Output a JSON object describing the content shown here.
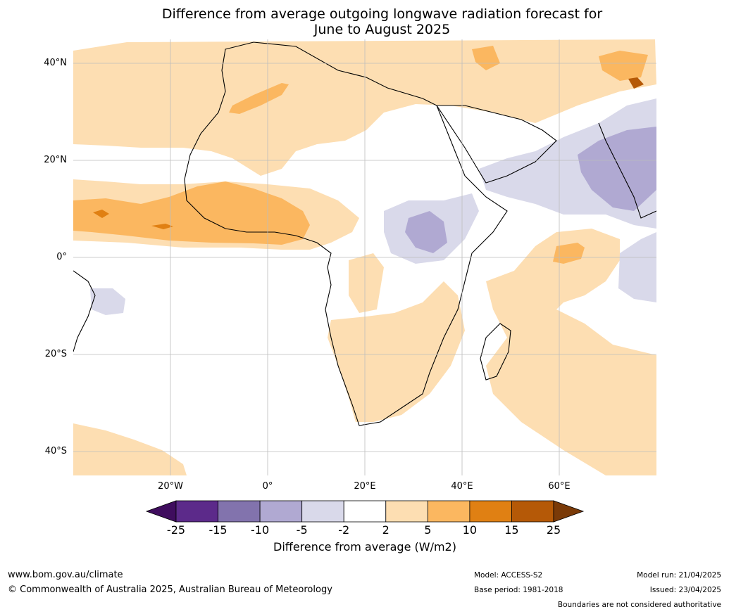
{
  "title_line1": "Difference from average outgoing longwave radiation forecast for",
  "title_line2": "June to August 2025",
  "map": {
    "lat_labels": [
      "40°N",
      "20°N",
      "0°",
      "20°S",
      "40°S"
    ],
    "lon_labels": [
      "20°W",
      "0°",
      "20°E",
      "40°E",
      "60°E"
    ]
  },
  "colorbar": {
    "ticks": [
      "-25",
      "-15",
      "-10",
      "-5",
      "-2",
      "2",
      "5",
      "10",
      "15",
      "25"
    ],
    "colors": [
      "#3f0d5e",
      "#5c2a8a",
      "#8273ad",
      "#b0a9d2",
      "#d9d9ea",
      "#ffffff",
      "#fddeb2",
      "#fbb760",
      "#e08013",
      "#b55907",
      "#7a3a08"
    ],
    "label": "Difference from average (W/m2)"
  },
  "footer": {
    "website": "www.bom.gov.au/climate",
    "copyright": "© Commonwealth of Australia 2025, Australian Bureau of Meteorology",
    "model": "Model: ACCESS-S2",
    "base_period": "Base period: 1981-2018",
    "model_run": "Model run: 21/04/2025",
    "issued": "Issued: 23/04/2025",
    "disclaimer": "Boundaries are not considered authoritative"
  }
}
